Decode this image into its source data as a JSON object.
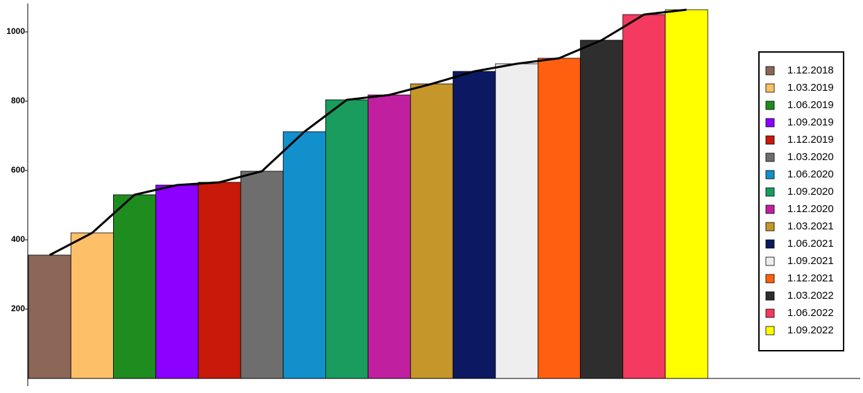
{
  "chart_data": {
    "type": "bar",
    "categories": [
      "1.12.2018",
      "1.03.2019",
      "1.06.2019",
      "1.09.2019",
      "1.12.2019",
      "1.03.2020",
      "1.06.2020",
      "1.09.2020",
      "1.12.2020",
      "1.03.2021",
      "1.06.2021",
      "1.09.2021",
      "1.12.2021",
      "1.03.2022",
      "1.06.2022",
      "1.09.2022"
    ],
    "values": [
      356,
      420,
      530,
      558,
      566,
      598,
      712,
      804,
      818,
      850,
      886,
      908,
      924,
      976,
      1050,
      1064
    ],
    "colors": [
      "#8c6657",
      "#fdc068",
      "#1e8c1e",
      "#8b00ff",
      "#c8190a",
      "#6e6e6e",
      "#1190cb",
      "#1a9c5e",
      "#c020a0",
      "#c5962a",
      "#0c1862",
      "#eeeeee",
      "#ff6010",
      "#2e2e2e",
      "#f43a5e",
      "#ffff00"
    ],
    "line_overlay": true,
    "line_color": "#000000",
    "ylim": [
      0,
      1082
    ],
    "yticks": [
      200,
      400,
      600,
      800,
      1000
    ],
    "legend": "right"
  }
}
